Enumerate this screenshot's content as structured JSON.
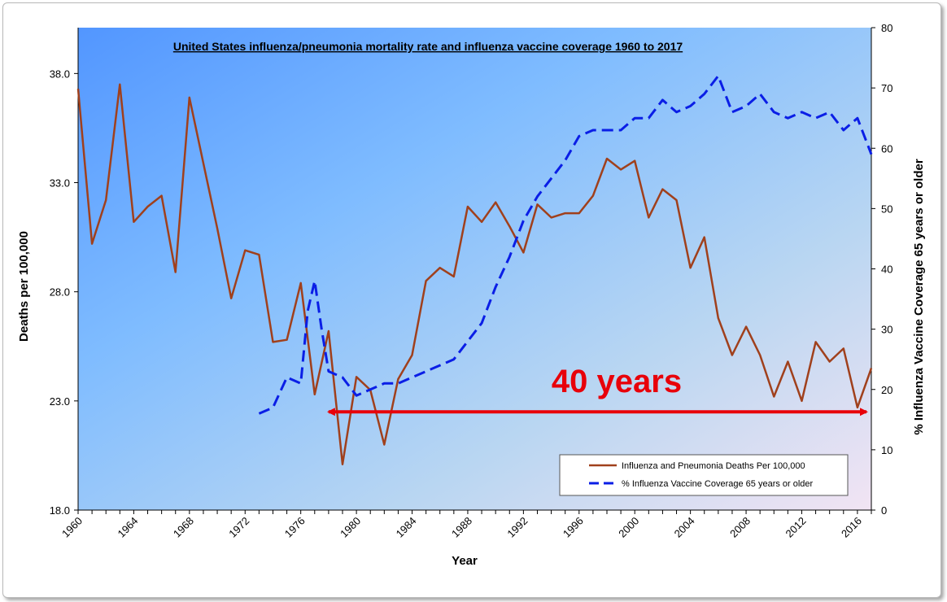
{
  "chart_data": {
    "type": "line",
    "title": "United States influenza/pneumonia mortality rate and influenza vaccine coverage 1960 to 2017",
    "xlabel": "Year",
    "ylabel_left": "Deaths per 100,000",
    "ylabel_right": "% Influenza Vaccine Coverage 65 years or older",
    "xlim": [
      1960,
      2017
    ],
    "ylim_left": [
      18,
      40.1
    ],
    "ylim_right": [
      0,
      80
    ],
    "x_ticks": [
      1960,
      1964,
      1968,
      1972,
      1976,
      1980,
      1984,
      1988,
      1992,
      1996,
      2000,
      2004,
      2008,
      2012,
      2016
    ],
    "y_ticks_left": [
      "18.0",
      "23.0",
      "28.0",
      "33.0",
      "38.0"
    ],
    "y_ticks_right": [
      "0",
      "10",
      "20",
      "30",
      "40",
      "50",
      "60",
      "70",
      "80"
    ],
    "grid": false,
    "legend_position": "bottom-right",
    "series": [
      {
        "name": "Influenza and Pneumonia Deaths Per 100,000",
        "axis": "left",
        "color": "#a0401c",
        "style": "solid",
        "x": [
          1960,
          1961,
          1962,
          1963,
          1964,
          1965,
          1966,
          1967,
          1968,
          1969,
          1970,
          1971,
          1972,
          1973,
          1974,
          1975,
          1976,
          1977,
          1978,
          1979,
          1980,
          1981,
          1982,
          1983,
          1984,
          1985,
          1986,
          1987,
          1988,
          1989,
          1990,
          1991,
          1992,
          1993,
          1994,
          1995,
          1996,
          1997,
          1998,
          1999,
          2000,
          2001,
          2002,
          2003,
          2004,
          2005,
          2006,
          2007,
          2008,
          2009,
          2010,
          2011,
          2012,
          2013,
          2014,
          2015,
          2016,
          2017
        ],
        "values": [
          37.3,
          30.2,
          32.2,
          37.5,
          31.2,
          31.9,
          32.4,
          28.9,
          36.9,
          33.9,
          30.9,
          27.7,
          29.9,
          29.7,
          25.7,
          25.8,
          28.4,
          23.3,
          26.2,
          20.1,
          24.1,
          23.5,
          21.0,
          24.0,
          25.1,
          28.5,
          29.1,
          28.7,
          31.9,
          31.2,
          32.1,
          31.0,
          29.8,
          32.0,
          31.4,
          31.6,
          31.6,
          32.4,
          34.1,
          33.6,
          34.0,
          31.4,
          32.7,
          32.2,
          29.1,
          30.5,
          26.8,
          25.1,
          26.4,
          25.1,
          23.2,
          24.8,
          23.0,
          25.7,
          24.8,
          25.4,
          22.7,
          24.5
        ]
      },
      {
        "name": "% Influenza Vaccine Coverage 65 years or older",
        "axis": "right",
        "color": "#0a1ee6",
        "style": "dashed",
        "x": [
          1973,
          1974,
          1975,
          1976,
          1976.5,
          1977,
          1977.5,
          1978,
          1979,
          1980,
          1981,
          1982,
          1983,
          1984,
          1985,
          1986,
          1987,
          1988,
          1989,
          1990,
          1991,
          1992,
          1993,
          1994,
          1995,
          1996,
          1997,
          1998,
          1999,
          2000,
          2001,
          2002,
          2003,
          2004,
          2005,
          2006,
          2007,
          2008,
          2009,
          2010,
          2011,
          2012,
          2013,
          2014,
          2015,
          2016,
          2017
        ],
        "values": [
          16,
          17,
          22,
          21,
          33,
          38,
          30,
          23,
          22,
          19,
          20,
          21,
          21,
          22,
          23,
          24,
          25,
          28,
          31,
          37,
          42,
          48,
          52,
          55,
          58,
          62,
          63,
          63,
          63,
          65,
          65,
          68,
          66,
          67,
          69,
          72,
          66,
          67,
          69,
          66,
          65,
          66,
          65,
          66,
          63,
          65,
          59
        ]
      }
    ],
    "annotation": {
      "text": "40 years",
      "arrow_from_year": 1978,
      "arrow_to_year": 2017,
      "arrow_at_left_value": 22.5,
      "color": "#e8000a"
    }
  }
}
